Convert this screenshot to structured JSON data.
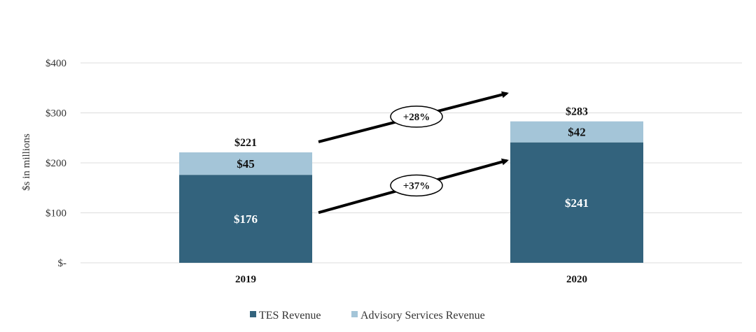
{
  "chart_data": {
    "type": "bar",
    "stacked": true,
    "categories": [
      "2019",
      "2020"
    ],
    "series": [
      {
        "name": "TES Revenue",
        "values": [
          176,
          241
        ],
        "labels": [
          "$176",
          "$241"
        ]
      },
      {
        "name": "Advisory Services Revenue",
        "values": [
          45,
          42
        ],
        "labels": [
          "$45",
          "$42"
        ]
      }
    ],
    "totals": [
      221,
      283
    ],
    "total_labels": [
      "$221",
      "$283"
    ],
    "ylabel": "$s in millions",
    "ylim": [
      0,
      400
    ],
    "yticks": [
      0,
      100,
      200,
      300,
      400
    ],
    "ytick_labels": [
      "$-",
      "$100",
      "$200",
      "$300",
      "$400"
    ],
    "grid": true,
    "legend_position": "bottom",
    "annotations": [
      {
        "text": "+28%",
        "applies_to": "total"
      },
      {
        "text": "+37%",
        "applies_to": "TES Revenue"
      }
    ],
    "colors": {
      "TES Revenue": "#33637d",
      "Advisory Services Revenue": "#a4c5d8",
      "arrow": "#000000"
    }
  }
}
